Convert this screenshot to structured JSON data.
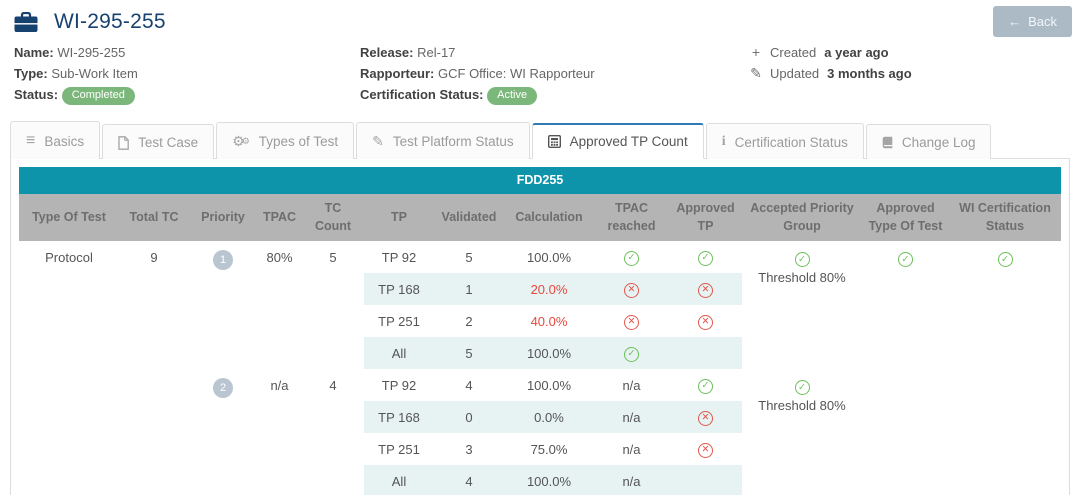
{
  "header": {
    "title": "WI-295-255",
    "back_label": "Back"
  },
  "icons": {
    "back_arrow": "←",
    "plus": "+",
    "pencil": "✎",
    "check": "✓",
    "cross": "✕",
    "list": "≡",
    "gear": "⚙",
    "info": "i"
  },
  "colors": {
    "navy_title": "#17416f",
    "accent_teal": "#0e94aa",
    "header_gray": "#b4b4b4",
    "shaded_row": "#e6f3f2",
    "success_green": "#6cbf5a",
    "danger_red": "#e2574e",
    "badge_green": "#7bb77b",
    "priority_badge_gray": "#b9c5d0",
    "back_button_gray": "#abbac5",
    "active_tab_border_blue": "#2e7ab2"
  },
  "info": {
    "name": {
      "label": "Name:",
      "value": "WI-295-255"
    },
    "type": {
      "label": "Type:",
      "value": "Sub-Work Item"
    },
    "status": {
      "label": "Status:",
      "badge": "Completed"
    },
    "release": {
      "label": "Release:",
      "value": "Rel-17"
    },
    "rapporteur": {
      "label": "Rapporteur:",
      "value": "GCF Office: WI Rapporteur"
    },
    "certification_status": {
      "label": "Certification Status:",
      "badge": "Active"
    },
    "created": {
      "label": "Created",
      "value": "a year ago"
    },
    "updated": {
      "label": "Updated",
      "value": "3 months ago"
    }
  },
  "tabs": [
    {
      "label": "Basics",
      "icon": "list",
      "active": false
    },
    {
      "label": "Test Case",
      "icon": "file",
      "active": false
    },
    {
      "label": "Types of Test",
      "icon": "gears",
      "active": false
    },
    {
      "label": "Test Platform Status",
      "icon": "pencil",
      "active": false
    },
    {
      "label": "Approved TP Count",
      "icon": "calculator",
      "active": true
    },
    {
      "label": "Certification Status",
      "icon": "info",
      "active": false
    },
    {
      "label": "Change Log",
      "icon": "book",
      "active": false
    }
  ],
  "table": {
    "caption": "FDD255",
    "columns": [
      "Type Of Test",
      "Total TC",
      "Priority",
      "TPAC",
      "TC Count",
      "TP",
      "Validated",
      "Calculation",
      "TPAC reached",
      "Approved TP",
      "Accepted Priority Group",
      "Approved Type Of Test",
      "WI Certification Status"
    ],
    "groups": [
      {
        "type_of_test": "Protocol",
        "total_tc": "9",
        "priority": "1",
        "tpac": "80%",
        "tc_count": "5",
        "accepted_priority_group": {
          "status": "check",
          "label": "Threshold 80%"
        },
        "approved_type_of_test": "check",
        "wi_certification_status": "check",
        "rows": [
          {
            "tp": "TP 92",
            "validated": "5",
            "calculation": "100.0%",
            "calc_red": false,
            "tpac_reached": "check",
            "approved_tp": "check",
            "shaded": false
          },
          {
            "tp": "TP 168",
            "validated": "1",
            "calculation": "20.0%",
            "calc_red": true,
            "tpac_reached": "cross",
            "approved_tp": "cross",
            "shaded": true
          },
          {
            "tp": "TP 251",
            "validated": "2",
            "calculation": "40.0%",
            "calc_red": true,
            "tpac_reached": "cross",
            "approved_tp": "cross",
            "shaded": false
          },
          {
            "tp": "All",
            "validated": "5",
            "calculation": "100.0%",
            "calc_red": false,
            "tpac_reached": "check",
            "approved_tp": "",
            "shaded": true
          }
        ]
      },
      {
        "type_of_test": "",
        "total_tc": "",
        "priority": "2",
        "tpac": "n/a",
        "tc_count": "4",
        "accepted_priority_group": {
          "status": "check",
          "label": "Threshold 80%"
        },
        "approved_type_of_test": "",
        "wi_certification_status": "",
        "rows": [
          {
            "tp": "TP 92",
            "validated": "4",
            "calculation": "100.0%",
            "calc_red": false,
            "tpac_reached": "n/a",
            "approved_tp": "check",
            "shaded": false
          },
          {
            "tp": "TP 168",
            "validated": "0",
            "calculation": "0.0%",
            "calc_red": false,
            "tpac_reached": "n/a",
            "approved_tp": "cross",
            "shaded": true
          },
          {
            "tp": "TP 251",
            "validated": "3",
            "calculation": "75.0%",
            "calc_red": false,
            "tpac_reached": "n/a",
            "approved_tp": "cross",
            "shaded": false
          },
          {
            "tp": "All",
            "validated": "4",
            "calculation": "100.0%",
            "calc_red": false,
            "tpac_reached": "n/a",
            "approved_tp": "",
            "shaded": true
          }
        ]
      }
    ]
  }
}
